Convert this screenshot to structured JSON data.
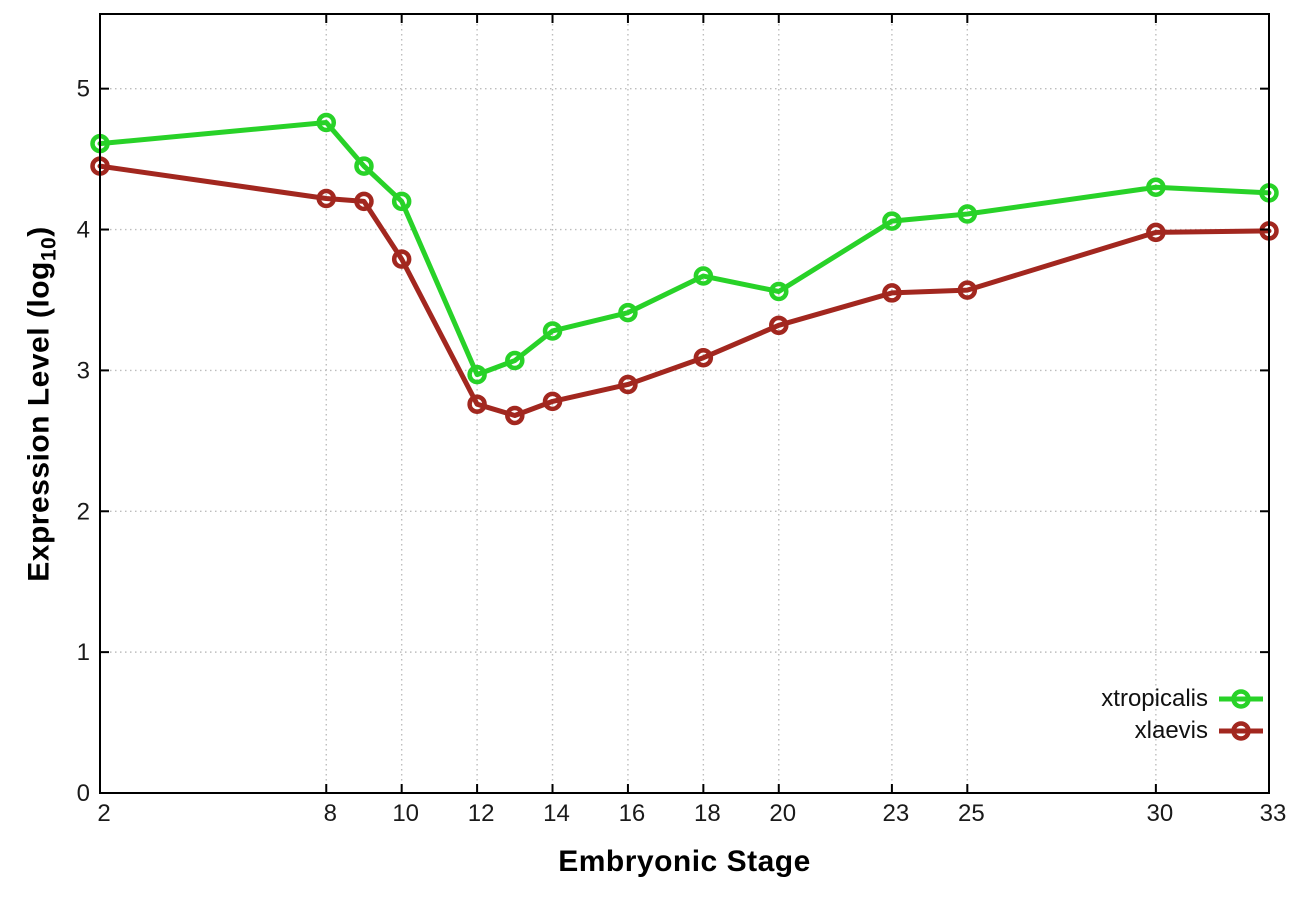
{
  "chart_data": {
    "type": "line",
    "title": "",
    "xlabel": "Embryonic Stage",
    "ylabel": "Expression Level (log10)",
    "ylabel_parts": {
      "pre": "Expression Level (log",
      "sub": "10",
      "post": ")"
    },
    "x": [
      2,
      8,
      9,
      10,
      12,
      13,
      14,
      16,
      18,
      20,
      23,
      25,
      30,
      33
    ],
    "series": [
      {
        "name": "xtropicalis",
        "color": "#28d228",
        "values": [
          4.61,
          4.76,
          4.45,
          4.2,
          2.97,
          3.07,
          3.28,
          3.41,
          3.67,
          3.56,
          4.06,
          4.11,
          4.3,
          4.26
        ]
      },
      {
        "name": "xlaevis",
        "color": "#a2271f",
        "values": [
          4.45,
          4.22,
          4.2,
          3.79,
          2.76,
          2.68,
          2.78,
          2.9,
          3.09,
          3.32,
          3.55,
          3.57,
          3.98,
          3.99
        ]
      }
    ],
    "xticks": [
      2,
      8,
      10,
      12,
      14,
      16,
      18,
      20,
      23,
      25,
      30,
      33
    ],
    "yticks": [
      0,
      1,
      2,
      3,
      4,
      5
    ],
    "xlim": [
      2,
      33
    ],
    "ylim": [
      0,
      5.53
    ],
    "grid": true,
    "legend_position": "bottom-right",
    "marker": "open-circle"
  },
  "style": {
    "grid_color": "#bdbdbd",
    "border_color": "#000000",
    "tick_label_color": "#1a1a1a",
    "background": "#ffffff"
  }
}
